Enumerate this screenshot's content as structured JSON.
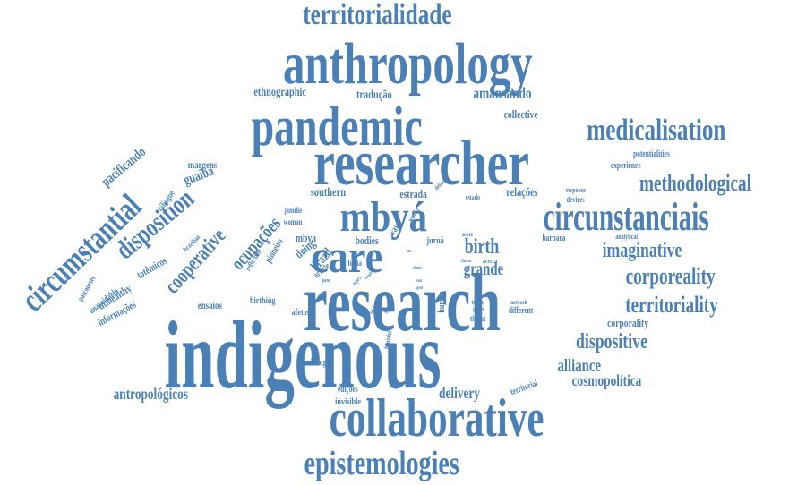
{
  "color": "#4a80b5",
  "words": [
    {
      "text": "indigenous"
    },
    {
      "text": "research"
    },
    {
      "text": "researcher"
    },
    {
      "text": "anthropology"
    },
    {
      "text": "collaborative"
    },
    {
      "text": "pandemic"
    },
    {
      "text": "care"
    },
    {
      "text": "mbyá"
    },
    {
      "text": "circunstanciais"
    },
    {
      "text": "territorialidade"
    },
    {
      "text": "epistemologies"
    },
    {
      "text": "circumstantial"
    },
    {
      "text": "medicalisation"
    },
    {
      "text": "methodological"
    },
    {
      "text": "corporeality"
    },
    {
      "text": "imaginative"
    },
    {
      "text": "territoriality"
    },
    {
      "text": "disposition"
    },
    {
      "text": "cooperative"
    },
    {
      "text": "dispositive"
    },
    {
      "text": "birth"
    },
    {
      "text": "grande"
    },
    {
      "text": "ocupações"
    },
    {
      "text": "alliance"
    },
    {
      "text": "cosmopolítica"
    },
    {
      "text": "antropológicos"
    },
    {
      "text": "delivery"
    },
    {
      "text": "amansando"
    },
    {
      "text": "pacificando"
    },
    {
      "text": "guaíba"
    },
    {
      "text": "ethnographic"
    },
    {
      "text": "tradução"
    },
    {
      "text": "collective"
    },
    {
      "text": "southern"
    },
    {
      "text": "estrada"
    },
    {
      "text": "relações"
    },
    {
      "text": "doing"
    },
    {
      "text": "brazil"
    },
    {
      "text": "mbya"
    },
    {
      "text": "bodies"
    },
    {
      "text": "corporality"
    },
    {
      "text": "margens"
    },
    {
      "text": "potentialities"
    },
    {
      "text": "experience"
    },
    {
      "text": "unhealthy"
    },
    {
      "text": "informações"
    },
    {
      "text": "totêmicos"
    },
    {
      "text": "ensaios"
    },
    {
      "text": "afetos"
    },
    {
      "text": "invisible"
    },
    {
      "text": "edições"
    },
    {
      "text": "dialogue"
    },
    {
      "text": "birthing"
    },
    {
      "text": "pinheiro"
    },
    {
      "text": "human"
    },
    {
      "text": "juruá"
    },
    {
      "text": "barbara"
    },
    {
      "text": "analytical"
    },
    {
      "text": "different"
    },
    {
      "text": "territorial"
    },
    {
      "text": "bilíngue"
    },
    {
      "text": "brazilian"
    },
    {
      "text": "unavoidable"
    },
    {
      "text": "parcourses"
    },
    {
      "text": "jamille"
    },
    {
      "text": "woman"
    },
    {
      "text": "bacia"
    },
    {
      "text": "article"
    },
    {
      "text": "reflection"
    },
    {
      "text": "estado"
    },
    {
      "text": "response"
    },
    {
      "text": "devires"
    },
    {
      "text": "sobre"
    },
    {
      "text": "theme"
    },
    {
      "text": "acerca"
    },
    {
      "text": "network"
    },
    {
      "text": "teach"
    },
    {
      "text": "people"
    },
    {
      "text": "threat"
    },
    {
      "text": "way"
    },
    {
      "text": "world"
    },
    {
      "text": "share"
    },
    {
      "text": "santo"
    },
    {
      "text": "sticker"
    },
    {
      "text": "feminist"
    },
    {
      "text": "debate"
    },
    {
      "text": "aspect"
    },
    {
      "text": "pano"
    },
    {
      "text": "couple"
    },
    {
      "text": "agent"
    },
    {
      "text": "tent"
    },
    {
      "text": "life"
    }
  ]
}
